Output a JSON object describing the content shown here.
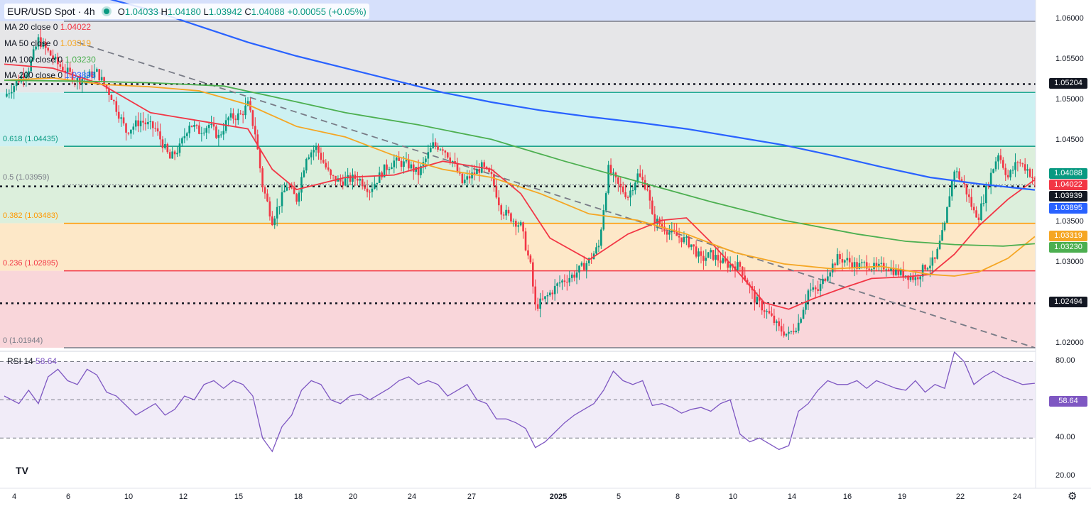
{
  "header": {
    "symbol": "EUR/USD Spot · 4h",
    "open_label": "O",
    "open": "1.04033",
    "high_label": "H",
    "high": "1.04180",
    "low_label": "L",
    "low": "1.03942",
    "close_label": "C",
    "close": "1.04088",
    "change": "+0.00055 (+0.05%)"
  },
  "legend": [
    {
      "label": "MA 20 close 0",
      "value": "1.04022",
      "color": "#f23645"
    },
    {
      "label": "MA 50 close 0",
      "value": "1.03319",
      "color": "#f5a623"
    },
    {
      "label": "MA 100 close 0",
      "value": "1.03230",
      "color": "#4caf50"
    },
    {
      "label": "MA 200 close 0",
      "value": "1.03895",
      "color": "#2962ff"
    }
  ],
  "fib_levels": [
    {
      "label": "0.618 (1.04435)",
      "price": 1.04435,
      "color": "#089981"
    },
    {
      "label": "0.5 (1.03959)",
      "price": 1.03959,
      "color": "#787b86"
    },
    {
      "label": "0.382 (1.03483)",
      "price": 1.03483,
      "color": "#ff9800"
    },
    {
      "label": "0.236 (1.02895)",
      "price": 1.02895,
      "color": "#f23645"
    },
    {
      "label": "0 (1.01944)",
      "price": 1.01944,
      "color": "#787b86"
    }
  ],
  "price_axis": {
    "ticks": [
      "1.06000",
      "1.05500",
      "1.05000",
      "1.04500",
      "1.03500",
      "1.03000",
      "1.02000"
    ],
    "tick_values": [
      1.06,
      1.055,
      1.05,
      1.045,
      1.035,
      1.03,
      1.02
    ],
    "range": [
      1.01944,
      1.062
    ]
  },
  "price_pills": [
    {
      "text": "1.05204",
      "price": 1.05204,
      "bg": "#131722"
    },
    {
      "text": "1.04088",
      "price": 1.04088,
      "bg": "#089981"
    },
    {
      "text": "1.04022",
      "price": 1.04022,
      "bg": "#f23645"
    },
    {
      "text": "1.03939",
      "price": 1.03939,
      "bg": "#131722"
    },
    {
      "text": "1.03895",
      "price": 1.03895,
      "bg": "#2962ff"
    },
    {
      "text": "1.03319",
      "price": 1.03319,
      "bg": "#f5a623"
    },
    {
      "text": "1.03230",
      "price": 1.0323,
      "bg": "#4caf50"
    },
    {
      "text": "1.02494",
      "price": 1.02494,
      "bg": "#131722"
    }
  ],
  "horizontal_levels": {
    "dotted": [
      1.05204,
      1.03939,
      1.02494
    ],
    "cyan_line": 1.051,
    "top_line": 1.0598
  },
  "time_axis": [
    "4",
    "6",
    "10",
    "12",
    "15",
    "18",
    "20",
    "24",
    "27",
    "2025",
    "5",
    "8",
    "10",
    "14",
    "16",
    "19",
    "22",
    "24"
  ],
  "rsi": {
    "label": "RSI 14",
    "value": "58.64",
    "ticks": [
      "80.00",
      "40.00",
      "20.00"
    ],
    "tick_values": [
      80,
      40,
      20
    ],
    "bands": [
      70,
      50,
      30
    ]
  },
  "chart_data": {
    "type": "candlestick",
    "title": "EUR/USD Spot · 4h",
    "ylim": [
      1.01944,
      1.062
    ],
    "path": [
      [
        0,
        1.0505
      ],
      [
        10,
        1.054
      ],
      [
        14,
        1.0575
      ],
      [
        22,
        1.0545
      ],
      [
        30,
        1.0525
      ],
      [
        38,
        1.0535
      ],
      [
        44,
        1.0505
      ],
      [
        50,
        1.0462
      ],
      [
        56,
        1.0475
      ],
      [
        62,
        1.0465
      ],
      [
        68,
        1.0428
      ],
      [
        72,
        1.0442
      ],
      [
        76,
        1.0472
      ],
      [
        80,
        1.0462
      ],
      [
        84,
        1.047
      ],
      [
        88,
        1.0455
      ],
      [
        92,
        1.0478
      ],
      [
        97,
        1.0482
      ],
      [
        100,
        1.0495
      ],
      [
        103,
        1.046
      ],
      [
        106,
        1.0395
      ],
      [
        110,
        1.0352
      ],
      [
        116,
        1.0395
      ],
      [
        120,
        1.0378
      ],
      [
        124,
        1.0432
      ],
      [
        128,
        1.0442
      ],
      [
        134,
        1.0405
      ],
      [
        138,
        1.04
      ],
      [
        145,
        1.0405
      ],
      [
        150,
        1.039
      ],
      [
        156,
        1.0415
      ],
      [
        160,
        1.0425
      ],
      [
        166,
        1.042
      ],
      [
        170,
        1.041
      ],
      [
        176,
        1.0445
      ],
      [
        180,
        1.0442
      ],
      [
        184,
        1.0425
      ],
      [
        188,
        1.0398
      ],
      [
        192,
        1.0408
      ],
      [
        196,
        1.0418
      ],
      [
        200,
        1.0405
      ],
      [
        204,
        1.0365
      ],
      [
        208,
        1.0355
      ],
      [
        212,
        1.0345
      ],
      [
        216,
        1.0295
      ],
      [
        218,
        1.0245
      ],
      [
        222,
        1.0255
      ],
      [
        228,
        1.0275
      ],
      [
        234,
        1.0285
      ],
      [
        240,
        1.0302
      ],
      [
        244,
        1.032
      ],
      [
        248,
        1.0415
      ],
      [
        252,
        1.0395
      ],
      [
        256,
        1.0382
      ],
      [
        260,
        1.0408
      ],
      [
        264,
        1.0392
      ],
      [
        266,
        1.0355
      ],
      [
        270,
        1.0345
      ],
      [
        274,
        1.0335
      ],
      [
        278,
        1.033
      ],
      [
        282,
        1.0322
      ],
      [
        286,
        1.0303
      ],
      [
        290,
        1.031
      ],
      [
        296,
        1.0298
      ],
      [
        302,
        1.0295
      ],
      [
        308,
        1.0255
      ],
      [
        314,
        1.0235
      ],
      [
        318,
        1.0218
      ],
      [
        322,
        1.021
      ],
      [
        326,
        1.0225
      ],
      [
        330,
        1.0265
      ],
      [
        334,
        1.0265
      ],
      [
        338,
        1.0288
      ],
      [
        342,
        1.0305
      ],
      [
        346,
        1.0302
      ],
      [
        350,
        1.0295
      ],
      [
        354,
        1.0298
      ],
      [
        358,
        1.0292
      ],
      [
        362,
        1.0296
      ],
      [
        366,
        1.0288
      ],
      [
        370,
        1.0285
      ],
      [
        374,
        1.028
      ],
      [
        378,
        1.0295
      ],
      [
        382,
        1.0302
      ],
      [
        386,
        1.0345
      ],
      [
        388,
        1.0385
      ],
      [
        390,
        1.0415
      ],
      [
        394,
        1.0395
      ],
      [
        398,
        1.0362
      ],
      [
        400,
        1.0358
      ],
      [
        404,
        1.04
      ],
      [
        408,
        1.0435
      ],
      [
        412,
        1.0405
      ],
      [
        416,
        1.0425
      ],
      [
        420,
        1.0415
      ],
      [
        423,
        1.04
      ]
    ],
    "ma": [
      {
        "name": "MA 20 close 0",
        "color": "#f23645",
        "points": [
          [
            0,
            1.0545
          ],
          [
            20,
            1.054
          ],
          [
            40,
            1.052
          ],
          [
            60,
            1.0485
          ],
          [
            80,
            1.0475
          ],
          [
            100,
            1.0465
          ],
          [
            110,
            1.0415
          ],
          [
            120,
            1.039
          ],
          [
            140,
            1.0405
          ],
          [
            160,
            1.0408
          ],
          [
            180,
            1.0425
          ],
          [
            200,
            1.0415
          ],
          [
            212,
            1.0385
          ],
          [
            224,
            1.033
          ],
          [
            240,
            1.0303
          ],
          [
            256,
            1.0335
          ],
          [
            270,
            1.0352
          ],
          [
            280,
            1.0355
          ],
          [
            290,
            1.0325
          ],
          [
            300,
            1.0292
          ],
          [
            312,
            1.025
          ],
          [
            322,
            1.0242
          ],
          [
            332,
            1.0255
          ],
          [
            344,
            1.0268
          ],
          [
            356,
            1.028
          ],
          [
            370,
            1.0282
          ],
          [
            380,
            1.0285
          ],
          [
            390,
            1.031
          ],
          [
            400,
            1.0345
          ],
          [
            412,
            1.0378
          ],
          [
            423,
            1.04022
          ]
        ]
      },
      {
        "name": "MA 50 close 0",
        "color": "#f5a623",
        "points": [
          [
            0,
            1.0525
          ],
          [
            20,
            1.0528
          ],
          [
            40,
            1.052
          ],
          [
            60,
            1.0517
          ],
          [
            80,
            1.0512
          ],
          [
            100,
            1.0495
          ],
          [
            120,
            1.0468
          ],
          [
            140,
            1.0455
          ],
          [
            160,
            1.0432
          ],
          [
            180,
            1.0415
          ],
          [
            200,
            1.0405
          ],
          [
            220,
            1.0385
          ],
          [
            240,
            1.036
          ],
          [
            260,
            1.0352
          ],
          [
            280,
            1.0335
          ],
          [
            300,
            1.0312
          ],
          [
            320,
            1.0298
          ],
          [
            340,
            1.0292
          ],
          [
            360,
            1.0295
          ],
          [
            380,
            1.0285
          ],
          [
            390,
            1.0283
          ],
          [
            400,
            1.0288
          ],
          [
            412,
            1.0305
          ],
          [
            423,
            1.03319
          ]
        ]
      },
      {
        "name": "MA 100 close 0",
        "color": "#4caf50",
        "points": [
          [
            0,
            1.0525
          ],
          [
            30,
            1.0524
          ],
          [
            60,
            1.0522
          ],
          [
            90,
            1.0518
          ],
          [
            110,
            1.0505
          ],
          [
            140,
            1.0485
          ],
          [
            170,
            1.047
          ],
          [
            200,
            1.0452
          ],
          [
            230,
            1.0425
          ],
          [
            260,
            1.04
          ],
          [
            290,
            1.0375
          ],
          [
            320,
            1.0352
          ],
          [
            350,
            1.0335
          ],
          [
            370,
            1.0326
          ],
          [
            390,
            1.0322
          ],
          [
            410,
            1.032
          ],
          [
            423,
            1.0323
          ]
        ]
      },
      {
        "name": "MA 200 close 0",
        "color": "#2962ff",
        "points": [
          [
            40,
            1.0628
          ],
          [
            60,
            1.0612
          ],
          [
            80,
            1.0592
          ],
          [
            100,
            1.0572
          ],
          [
            120,
            1.0555
          ],
          [
            140,
            1.054
          ],
          [
            160,
            1.0525
          ],
          [
            180,
            1.051
          ],
          [
            200,
            1.0498
          ],
          [
            220,
            1.0488
          ],
          [
            240,
            1.048
          ],
          [
            260,
            1.0473
          ],
          [
            280,
            1.0465
          ],
          [
            300,
            1.0455
          ],
          [
            320,
            1.0445
          ],
          [
            340,
            1.0432
          ],
          [
            360,
            1.0418
          ],
          [
            380,
            1.0405
          ],
          [
            400,
            1.0397
          ],
          [
            412,
            1.0393
          ],
          [
            423,
            1.03895
          ]
        ]
      }
    ],
    "trendline": [
      [
        30,
        1.0572
      ],
      [
        423,
        1.01944
      ]
    ],
    "rsi_points": [
      [
        0,
        52
      ],
      [
        6,
        48
      ],
      [
        10,
        55
      ],
      [
        14,
        48
      ],
      [
        18,
        62
      ],
      [
        22,
        66
      ],
      [
        26,
        60
      ],
      [
        30,
        58
      ],
      [
        34,
        66
      ],
      [
        38,
        63
      ],
      [
        42,
        54
      ],
      [
        46,
        52
      ],
      [
        50,
        47
      ],
      [
        54,
        42
      ],
      [
        58,
        45
      ],
      [
        62,
        48
      ],
      [
        66,
        42
      ],
      [
        70,
        45
      ],
      [
        74,
        52
      ],
      [
        78,
        50
      ],
      [
        82,
        58
      ],
      [
        86,
        60
      ],
      [
        90,
        56
      ],
      [
        94,
        60
      ],
      [
        98,
        58
      ],
      [
        102,
        52
      ],
      [
        106,
        30
      ],
      [
        110,
        23
      ],
      [
        114,
        36
      ],
      [
        118,
        42
      ],
      [
        122,
        55
      ],
      [
        126,
        60
      ],
      [
        130,
        58
      ],
      [
        134,
        50
      ],
      [
        138,
        48
      ],
      [
        142,
        52
      ],
      [
        146,
        53
      ],
      [
        150,
        50
      ],
      [
        154,
        53
      ],
      [
        158,
        56
      ],
      [
        162,
        60
      ],
      [
        166,
        62
      ],
      [
        170,
        58
      ],
      [
        174,
        60
      ],
      [
        178,
        58
      ],
      [
        182,
        52
      ],
      [
        186,
        55
      ],
      [
        190,
        58
      ],
      [
        194,
        50
      ],
      [
        198,
        48
      ],
      [
        202,
        40
      ],
      [
        206,
        40
      ],
      [
        210,
        38
      ],
      [
        214,
        35
      ],
      [
        218,
        25
      ],
      [
        222,
        28
      ],
      [
        226,
        33
      ],
      [
        230,
        38
      ],
      [
        234,
        42
      ],
      [
        238,
        45
      ],
      [
        242,
        48
      ],
      [
        246,
        55
      ],
      [
        250,
        65
      ],
      [
        254,
        60
      ],
      [
        258,
        58
      ],
      [
        262,
        60
      ],
      [
        266,
        47
      ],
      [
        270,
        48
      ],
      [
        274,
        46
      ],
      [
        278,
        43
      ],
      [
        282,
        45
      ],
      [
        286,
        46
      ],
      [
        290,
        44
      ],
      [
        294,
        48
      ],
      [
        298,
        50
      ],
      [
        302,
        32
      ],
      [
        306,
        28
      ],
      [
        310,
        30
      ],
      [
        314,
        27
      ],
      [
        318,
        24
      ],
      [
        322,
        26
      ],
      [
        326,
        44
      ],
      [
        330,
        48
      ],
      [
        334,
        55
      ],
      [
        338,
        60
      ],
      [
        342,
        58
      ],
      [
        346,
        58
      ],
      [
        350,
        60
      ],
      [
        354,
        56
      ],
      [
        358,
        60
      ],
      [
        362,
        58
      ],
      [
        366,
        56
      ],
      [
        370,
        55
      ],
      [
        374,
        60
      ],
      [
        378,
        54
      ],
      [
        382,
        58
      ],
      [
        386,
        56
      ],
      [
        390,
        75
      ],
      [
        394,
        70
      ],
      [
        398,
        58
      ],
      [
        402,
        62
      ],
      [
        406,
        65
      ],
      [
        410,
        62
      ],
      [
        414,
        60
      ],
      [
        418,
        58
      ],
      [
        423,
        58.64
      ]
    ]
  }
}
